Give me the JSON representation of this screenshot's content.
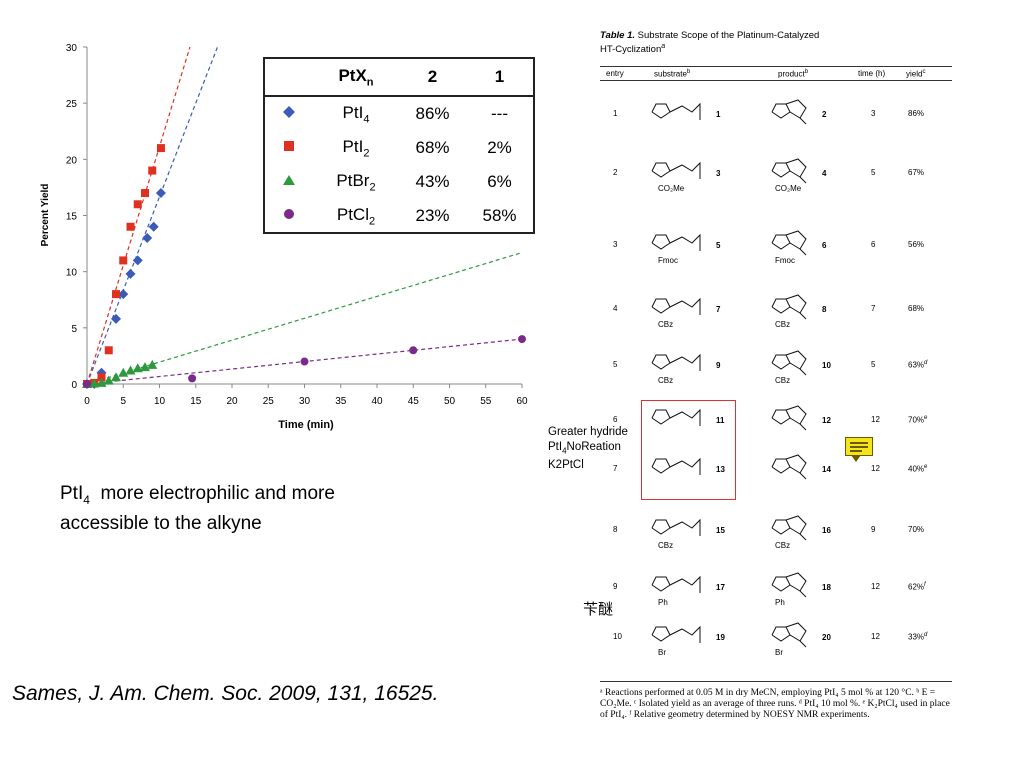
{
  "chart_data": {
    "type": "scatter",
    "xlabel": "Time (min)",
    "ylabel": "Percent Yield",
    "xlim": [
      0,
      60
    ],
    "ylim": [
      0,
      30
    ],
    "xticks": [
      0,
      5,
      10,
      15,
      20,
      25,
      30,
      35,
      40,
      45,
      50,
      55,
      60
    ],
    "yticks": [
      0,
      5,
      10,
      15,
      20,
      25,
      30
    ],
    "grid": false,
    "series": [
      {
        "name": "PtI4",
        "color": "#3b5bb5",
        "marker": "diamond",
        "points": [
          [
            0,
            0
          ],
          [
            1,
            0
          ],
          [
            2,
            1
          ],
          [
            4,
            5.8
          ],
          [
            5,
            8
          ],
          [
            6,
            9.8
          ],
          [
            7,
            11
          ],
          [
            8.3,
            13
          ],
          [
            9.2,
            14
          ],
          [
            10.2,
            17
          ]
        ],
        "trend": [
          [
            0,
            0
          ],
          [
            18,
            30
          ]
        ]
      },
      {
        "name": "PtI2",
        "color": "#e03020",
        "marker": "square",
        "points": [
          [
            0,
            0
          ],
          [
            1,
            0.1
          ],
          [
            2,
            0.6
          ],
          [
            3,
            3
          ],
          [
            4,
            8
          ],
          [
            5,
            11
          ],
          [
            6,
            14
          ],
          [
            7,
            16
          ],
          [
            8,
            17
          ],
          [
            9,
            19
          ],
          [
            10.2,
            21
          ]
        ],
        "trend": [
          [
            0,
            0
          ],
          [
            14.2,
            30
          ]
        ]
      },
      {
        "name": "PtBr2",
        "color": "#2c9a3c",
        "marker": "triangle",
        "points": [
          [
            0,
            0
          ],
          [
            1,
            0.05
          ],
          [
            2,
            0.1
          ],
          [
            3,
            0.3
          ],
          [
            4,
            0.6
          ],
          [
            5,
            1
          ],
          [
            6,
            1.2
          ],
          [
            7,
            1.4
          ],
          [
            8,
            1.5
          ],
          [
            9,
            1.7
          ]
        ],
        "trend": [
          [
            0,
            0
          ],
          [
            60,
            11.7
          ]
        ]
      },
      {
        "name": "PtCl2",
        "color": "#7a2a8a",
        "marker": "circle",
        "points": [
          [
            0,
            0
          ],
          [
            14.5,
            0.5
          ],
          [
            30,
            2
          ],
          [
            45,
            3
          ],
          [
            60,
            4
          ]
        ],
        "trend": [
          [
            0,
            0
          ],
          [
            60,
            4
          ]
        ]
      }
    ]
  },
  "legend": {
    "header": {
      "catalyst": "PtX",
      "sub": "n",
      "col1": "2",
      "col2": "1"
    },
    "rows": [
      {
        "name": "PtI",
        "sub": "4",
        "v2": "86%",
        "v1": "---"
      },
      {
        "name": "PtI",
        "sub": "2",
        "v2": "68%",
        "v1": "2%"
      },
      {
        "name": "PtBr",
        "sub": "2",
        "v2": "43%",
        "v1": "6%"
      },
      {
        "name": "PtCl",
        "sub": "2",
        "v2": "23%",
        "v1": "58%"
      }
    ]
  },
  "note": {
    "line1a": "PtI",
    "line1sub": "4",
    "line1b": "  more electrophilic and more",
    "line2": "accessible to the alkyne"
  },
  "citation": "Sames, J. Am. Chem. Soc. 2009, 131, 16525.",
  "annotation": {
    "line1": "Greater hydride",
    "line2a": "PtI",
    "line2sub": "4",
    "line2b": "NoReation",
    "line3": "K2PtCl"
  },
  "chinese_note": "苄醚",
  "table": {
    "caption_label": "Table 1.",
    "caption_text": "Substrate Scope of the Platinum-Catalyzed",
    "caption_text2": "HT-Cyclization",
    "caption_sup": "a",
    "headers": {
      "entry": "entry",
      "substrate": "substrate",
      "substrate_sup": "b",
      "product": "product",
      "product_sup": "b",
      "time": "time (h)",
      "yield": "yield",
      "yield_sup": "c"
    },
    "rows": [
      {
        "entry": "1",
        "sub_no": "1",
        "prod_no": "2",
        "sub_label": "",
        "prod_label": "",
        "time": "3",
        "yield": "86%"
      },
      {
        "entry": "2",
        "sub_no": "3",
        "prod_no": "4",
        "sub_label": "CO₂Me",
        "prod_label": "CO₂Me",
        "time": "5",
        "yield": "67%"
      },
      {
        "entry": "3",
        "sub_no": "5",
        "prod_no": "6",
        "sub_label": "Fmoc",
        "prod_label": "Fmoc",
        "time": "6",
        "yield": "56%"
      },
      {
        "entry": "4",
        "sub_no": "7",
        "prod_no": "8",
        "sub_label": "CBz",
        "prod_label": "CBz",
        "time": "7",
        "yield": "68%"
      },
      {
        "entry": "5",
        "sub_no": "9",
        "prod_no": "10",
        "sub_label": "CBz",
        "prod_label": "CBz",
        "time": "5",
        "yield": "63%",
        "yield_sup": "d"
      },
      {
        "entry": "6",
        "sub_no": "11",
        "prod_no": "12",
        "sub_label": "",
        "prod_label": "",
        "time": "12",
        "yield": "70%",
        "yield_sup": "e"
      },
      {
        "entry": "7",
        "sub_no": "13",
        "prod_no": "14",
        "sub_label": "",
        "prod_label": "",
        "time": "12",
        "yield": "40%",
        "yield_sup": "e"
      },
      {
        "entry": "8",
        "sub_no": "15",
        "prod_no": "16",
        "sub_label": "CBz",
        "prod_label": "CBz",
        "time": "9",
        "yield": "70%"
      },
      {
        "entry": "9",
        "sub_no": "17",
        "prod_no": "18",
        "sub_label": "Ph",
        "prod_label": "Ph",
        "time": "12",
        "yield": "62%",
        "yield_sup": "f"
      },
      {
        "entry": "10",
        "sub_no": "19",
        "prod_no": "20",
        "sub_label": "Br",
        "prod_label": "Br",
        "time": "12",
        "yield": "33%",
        "yield_sup": "d"
      }
    ],
    "footnote": "ᵃ Reactions performed at 0.05 M in dry MeCN, employing PtI₄ 5 mol % at 120 °C. ᵇ E = CO₂Me. ᶜ Isolated yield as an average of three runs. ᵈ PtI₄ 10 mol %. ᵉ K₂PtCl₄ used in place of PtI₄. ᶠ Relative geometry determined by NOESY NMR experiments."
  }
}
